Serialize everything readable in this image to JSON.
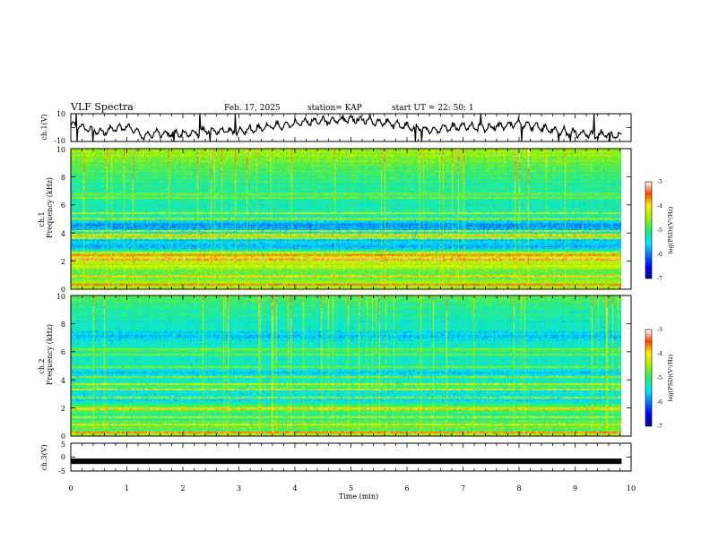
{
  "header": {
    "title": "VLF Spectra",
    "date": "Feb. 17, 2025",
    "station": "station= KAP",
    "start": "start  UT =   22: 50: 1"
  },
  "chart_data": [
    {
      "type": "line",
      "name": "ch1-waveform",
      "ylabel": "ch.1(V)",
      "ylim": [
        -10,
        10
      ],
      "y_ticks": [
        "10",
        "-10"
      ],
      "xlim": [
        0,
        10
      ],
      "x_end": 9.83,
      "envelope_x": [
        0,
        0.5,
        1,
        1.3,
        1.5,
        2,
        2.5,
        3,
        3.5,
        4,
        4.5,
        5,
        5.5,
        6,
        6.5,
        7,
        7.5,
        8,
        8.5,
        9,
        9.5,
        9.83
      ],
      "envelope_y": [
        2,
        -3,
        1,
        -6,
        -4,
        -5,
        -2,
        -3,
        1,
        3,
        5,
        6,
        4,
        1,
        -2,
        1,
        0,
        3,
        -1,
        -4,
        -5,
        -6
      ]
    },
    {
      "type": "heatmap",
      "name": "ch1-spectrogram",
      "ylabel": "ch.1",
      "ylabel2": "Frequency  (kHz)",
      "ylim": [
        0,
        10
      ],
      "y_ticks": [
        "0",
        "2",
        "4",
        "6",
        "8",
        "10"
      ],
      "xlim": [
        0,
        10
      ],
      "x_end": 9.83,
      "colorbar": {
        "range": [
          -7,
          -3
        ],
        "ticks": [
          "-3",
          "-4",
          "-5",
          "-6",
          "-7"
        ],
        "label": "log(PSD)(V²/Hz)"
      },
      "profile_f": [
        0,
        0.5,
        1,
        1.5,
        2,
        2.2,
        2.5,
        3,
        3.5,
        3.8,
        4,
        4.5,
        5,
        5.5,
        6,
        6.5,
        7,
        7.5,
        8,
        8.5,
        9,
        9.5,
        10
      ],
      "profile_v": [
        -4.3,
        -4.5,
        -4.9,
        -4.6,
        -4.3,
        -4.1,
        -4.7,
        -5.7,
        -5.6,
        -4.7,
        -5.5,
        -5.9,
        -5.4,
        -5.1,
        -5.3,
        -5.1,
        -5.2,
        -5.1,
        -5.0,
        -4.9,
        -4.8,
        -4.6,
        -4.5
      ],
      "lines_f": [
        0.3,
        0.9,
        1.6,
        2.1,
        2.4,
        2.6,
        3.6,
        3.85,
        4.15,
        5.0,
        5.4,
        6.5,
        6.8
      ],
      "lines_v": [
        -3.5,
        -3.9,
        -4.2,
        -3.3,
        -3.6,
        -4.0,
        -4.1,
        -3.9,
        -4.3,
        -4.5,
        -4.3,
        -4.6,
        -4.7
      ]
    },
    {
      "type": "heatmap",
      "name": "ch2-spectrogram",
      "ylabel": "ch.2",
      "ylabel2": "Frequency  (kHz)",
      "ylim": [
        0,
        10
      ],
      "y_ticks": [
        "0",
        "2",
        "4",
        "6",
        "8",
        "10"
      ],
      "xlim": [
        0,
        10
      ],
      "x_end": 9.83,
      "colorbar": {
        "range": [
          -7,
          -3
        ],
        "ticks": [
          "-3",
          "-4",
          "-5",
          "-6",
          "-7"
        ],
        "label": "log(PSD)(V²/Hz)"
      },
      "profile_f": [
        0,
        0.5,
        1,
        1.5,
        2,
        2.5,
        3,
        3.5,
        4,
        4.5,
        5,
        5.5,
        6,
        6.5,
        7,
        7.5,
        8,
        8.5,
        9,
        9.5,
        10
      ],
      "profile_v": [
        -4.4,
        -4.8,
        -4.9,
        -5.2,
        -4.6,
        -5.6,
        -5.5,
        -4.9,
        -5.3,
        -5.6,
        -5.2,
        -5.4,
        -5.0,
        -5.3,
        -5.6,
        -5.5,
        -5.4,
        -5.2,
        -5.1,
        -5.0,
        -4.9
      ],
      "lines_f": [
        0.2,
        0.8,
        1.3,
        1.9,
        2.7,
        3.3,
        3.7,
        4.2,
        4.9,
        5.8,
        6.2
      ],
      "lines_v": [
        -3.4,
        -4.0,
        -4.2,
        -3.9,
        -4.4,
        -4.1,
        -4.2,
        -4.5,
        -4.6,
        -4.6,
        -4.6
      ]
    },
    {
      "type": "line",
      "name": "ch3-waveform",
      "ylabel": "ch.3(V)",
      "ylim": [
        -5,
        5
      ],
      "y_ticks": [
        "5",
        "0",
        "-5"
      ],
      "xlim": [
        0,
        10
      ],
      "x_end": 9.83,
      "level": -1.5,
      "xlabel": "Time  (min)",
      "x_ticks": [
        "0",
        "1",
        "2",
        "3",
        "4",
        "5",
        "6",
        "7",
        "8",
        "9",
        "10"
      ]
    }
  ]
}
